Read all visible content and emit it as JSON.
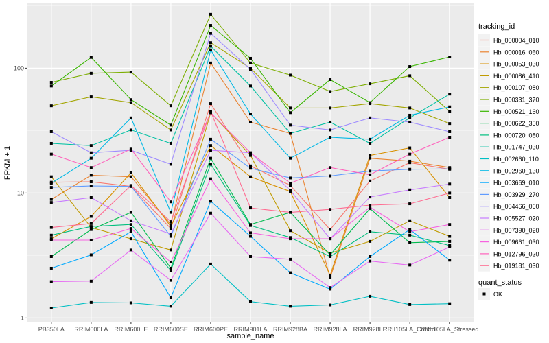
{
  "chart_data": {
    "type": "line",
    "title": "",
    "xlabel": "sample_name",
    "ylabel": "FPKM + 1",
    "yscale": "log10",
    "ylim": [
      0.92,
      330
    ],
    "yticks": [
      1,
      10,
      100
    ],
    "ytick_labels": [
      "1",
      "10",
      "100"
    ],
    "grid": true,
    "legend_position": "right",
    "x": [
      "PB350LA",
      "RRIM600LA",
      "RRIM600LE",
      "RRIM600SE",
      "RRIM600PE",
      "RRIM901LA",
      "RRIM928BA",
      "RRIM928LA",
      "RRIM928LE",
      "RRII105LA_Control",
      "RRII105LA_Stressed"
    ],
    "legend_title": "tracking_id",
    "series": [
      {
        "name": "Hb_000004_010",
        "color": "#F8766D",
        "values": [
          12.2,
          12.3,
          11.3,
          5.2,
          52,
          16.5,
          11.5,
          5.1,
          12.5,
          17.5,
          15.5
        ]
      },
      {
        "name": "Hb_000016_060",
        "color": "#EA8331",
        "values": [
          8.9,
          13.9,
          13.5,
          5.6,
          110,
          37,
          30,
          2.1,
          19,
          18,
          16
        ]
      },
      {
        "name": "Hb_000053_030",
        "color": "#D89000",
        "values": [
          4.3,
          6.5,
          14.5,
          5.4,
          24,
          13.5,
          10.3,
          2.2,
          20,
          23,
          9.2
        ]
      },
      {
        "name": "Hb_000086_410",
        "color": "#C09B00",
        "values": [
          13.5,
          5.3,
          4.3,
          3.5,
          44,
          20,
          5,
          3.3,
          4.1,
          6.0,
          4.5
        ]
      },
      {
        "name": "Hb_000107_080",
        "color": "#A3A500",
        "values": [
          50,
          59,
          53,
          32,
          160,
          100,
          48,
          48,
          52,
          48,
          36
        ]
      },
      {
        "name": "Hb_000331_370",
        "color": "#7CAE00",
        "values": [
          77,
          91,
          93,
          50,
          270,
          110,
          88,
          65,
          75,
          87,
          45
        ]
      },
      {
        "name": "Hb_000521_160",
        "color": "#39B600",
        "values": [
          72,
          122,
          56,
          35,
          220,
          120,
          44,
          81,
          53,
          103,
          123
        ]
      },
      {
        "name": "Hb_000622_350",
        "color": "#00BB4E",
        "values": [
          3.1,
          5.1,
          7.0,
          2.5,
          19,
          5.6,
          7.0,
          3.2,
          7.5,
          4.0,
          4.1
        ]
      },
      {
        "name": "Hb_000720_080",
        "color": "#00BF7D",
        "values": [
          4.6,
          5.4,
          5.6,
          2.4,
          17,
          5.5,
          4.4,
          3.1,
          4.9,
          4.6,
          3.8
        ]
      },
      {
        "name": "Hb_001747_030",
        "color": "#00C1A3",
        "values": [
          25,
          24,
          32,
          25,
          150,
          72,
          30,
          37,
          25,
          40,
          62
        ]
      },
      {
        "name": "Hb_002660_110",
        "color": "#00BFC4",
        "values": [
          1.2,
          1.33,
          1.32,
          1.24,
          2.7,
          1.35,
          1.24,
          1.27,
          1.49,
          1.28,
          1.3
        ]
      },
      {
        "name": "Hb_002960_130",
        "color": "#00B8E5",
        "values": [
          12,
          19,
          40,
          7,
          140,
          43,
          19,
          28,
          27,
          42,
          49
        ]
      },
      {
        "name": "Hb_003669_010",
        "color": "#00A9FF",
        "values": [
          2.5,
          3.2,
          4.9,
          1.45,
          8.6,
          4.5,
          2.3,
          1.7,
          3.1,
          5.1,
          2.9
        ]
      },
      {
        "name": "Hb_003929_270",
        "color": "#619CFF",
        "values": [
          11.1,
          11.4,
          11.3,
          4.5,
          27,
          15.8,
          13.2,
          13.7,
          15,
          15.5,
          15.6
        ]
      },
      {
        "name": "Hb_004466_060",
        "color": "#9F8CFF",
        "values": [
          31,
          21,
          22,
          17,
          190,
          98,
          35,
          32,
          40,
          37,
          31
        ]
      },
      {
        "name": "Hb_005527_020",
        "color": "#C77CFF",
        "values": [
          8.4,
          9.2,
          6.0,
          4.7,
          22,
          21,
          10.5,
          4.3,
          9.3,
          10.6,
          11.8
        ]
      },
      {
        "name": "Hb_007390_020",
        "color": "#E76BF3",
        "values": [
          1.95,
          1.97,
          3.5,
          2.0,
          6.9,
          3.1,
          2.95,
          1.75,
          2.85,
          2.65,
          3.7
        ]
      },
      {
        "name": "Hb_009661_030",
        "color": "#F763E0",
        "values": [
          4.2,
          4.2,
          5.2,
          2.8,
          13,
          4.8,
          4.3,
          4.3,
          7.7,
          4.9,
          5.6
        ]
      },
      {
        "name": "Hb_012796_020",
        "color": "#FF62BC",
        "values": [
          20.5,
          16,
          22.5,
          8.5,
          44,
          21,
          12,
          16,
          14,
          20.5,
          28
        ]
      },
      {
        "name": "Hb_019181_030",
        "color": "#FF6C91",
        "values": [
          5.3,
          5.7,
          11.5,
          5.9,
          45,
          7.6,
          7.0,
          7.4,
          8.0,
          8.2,
          10
        ]
      }
    ],
    "marker_legend_title": "quant_status",
    "marker_legend": [
      {
        "label": "OK",
        "shape": "square",
        "color": "#000000"
      }
    ]
  }
}
